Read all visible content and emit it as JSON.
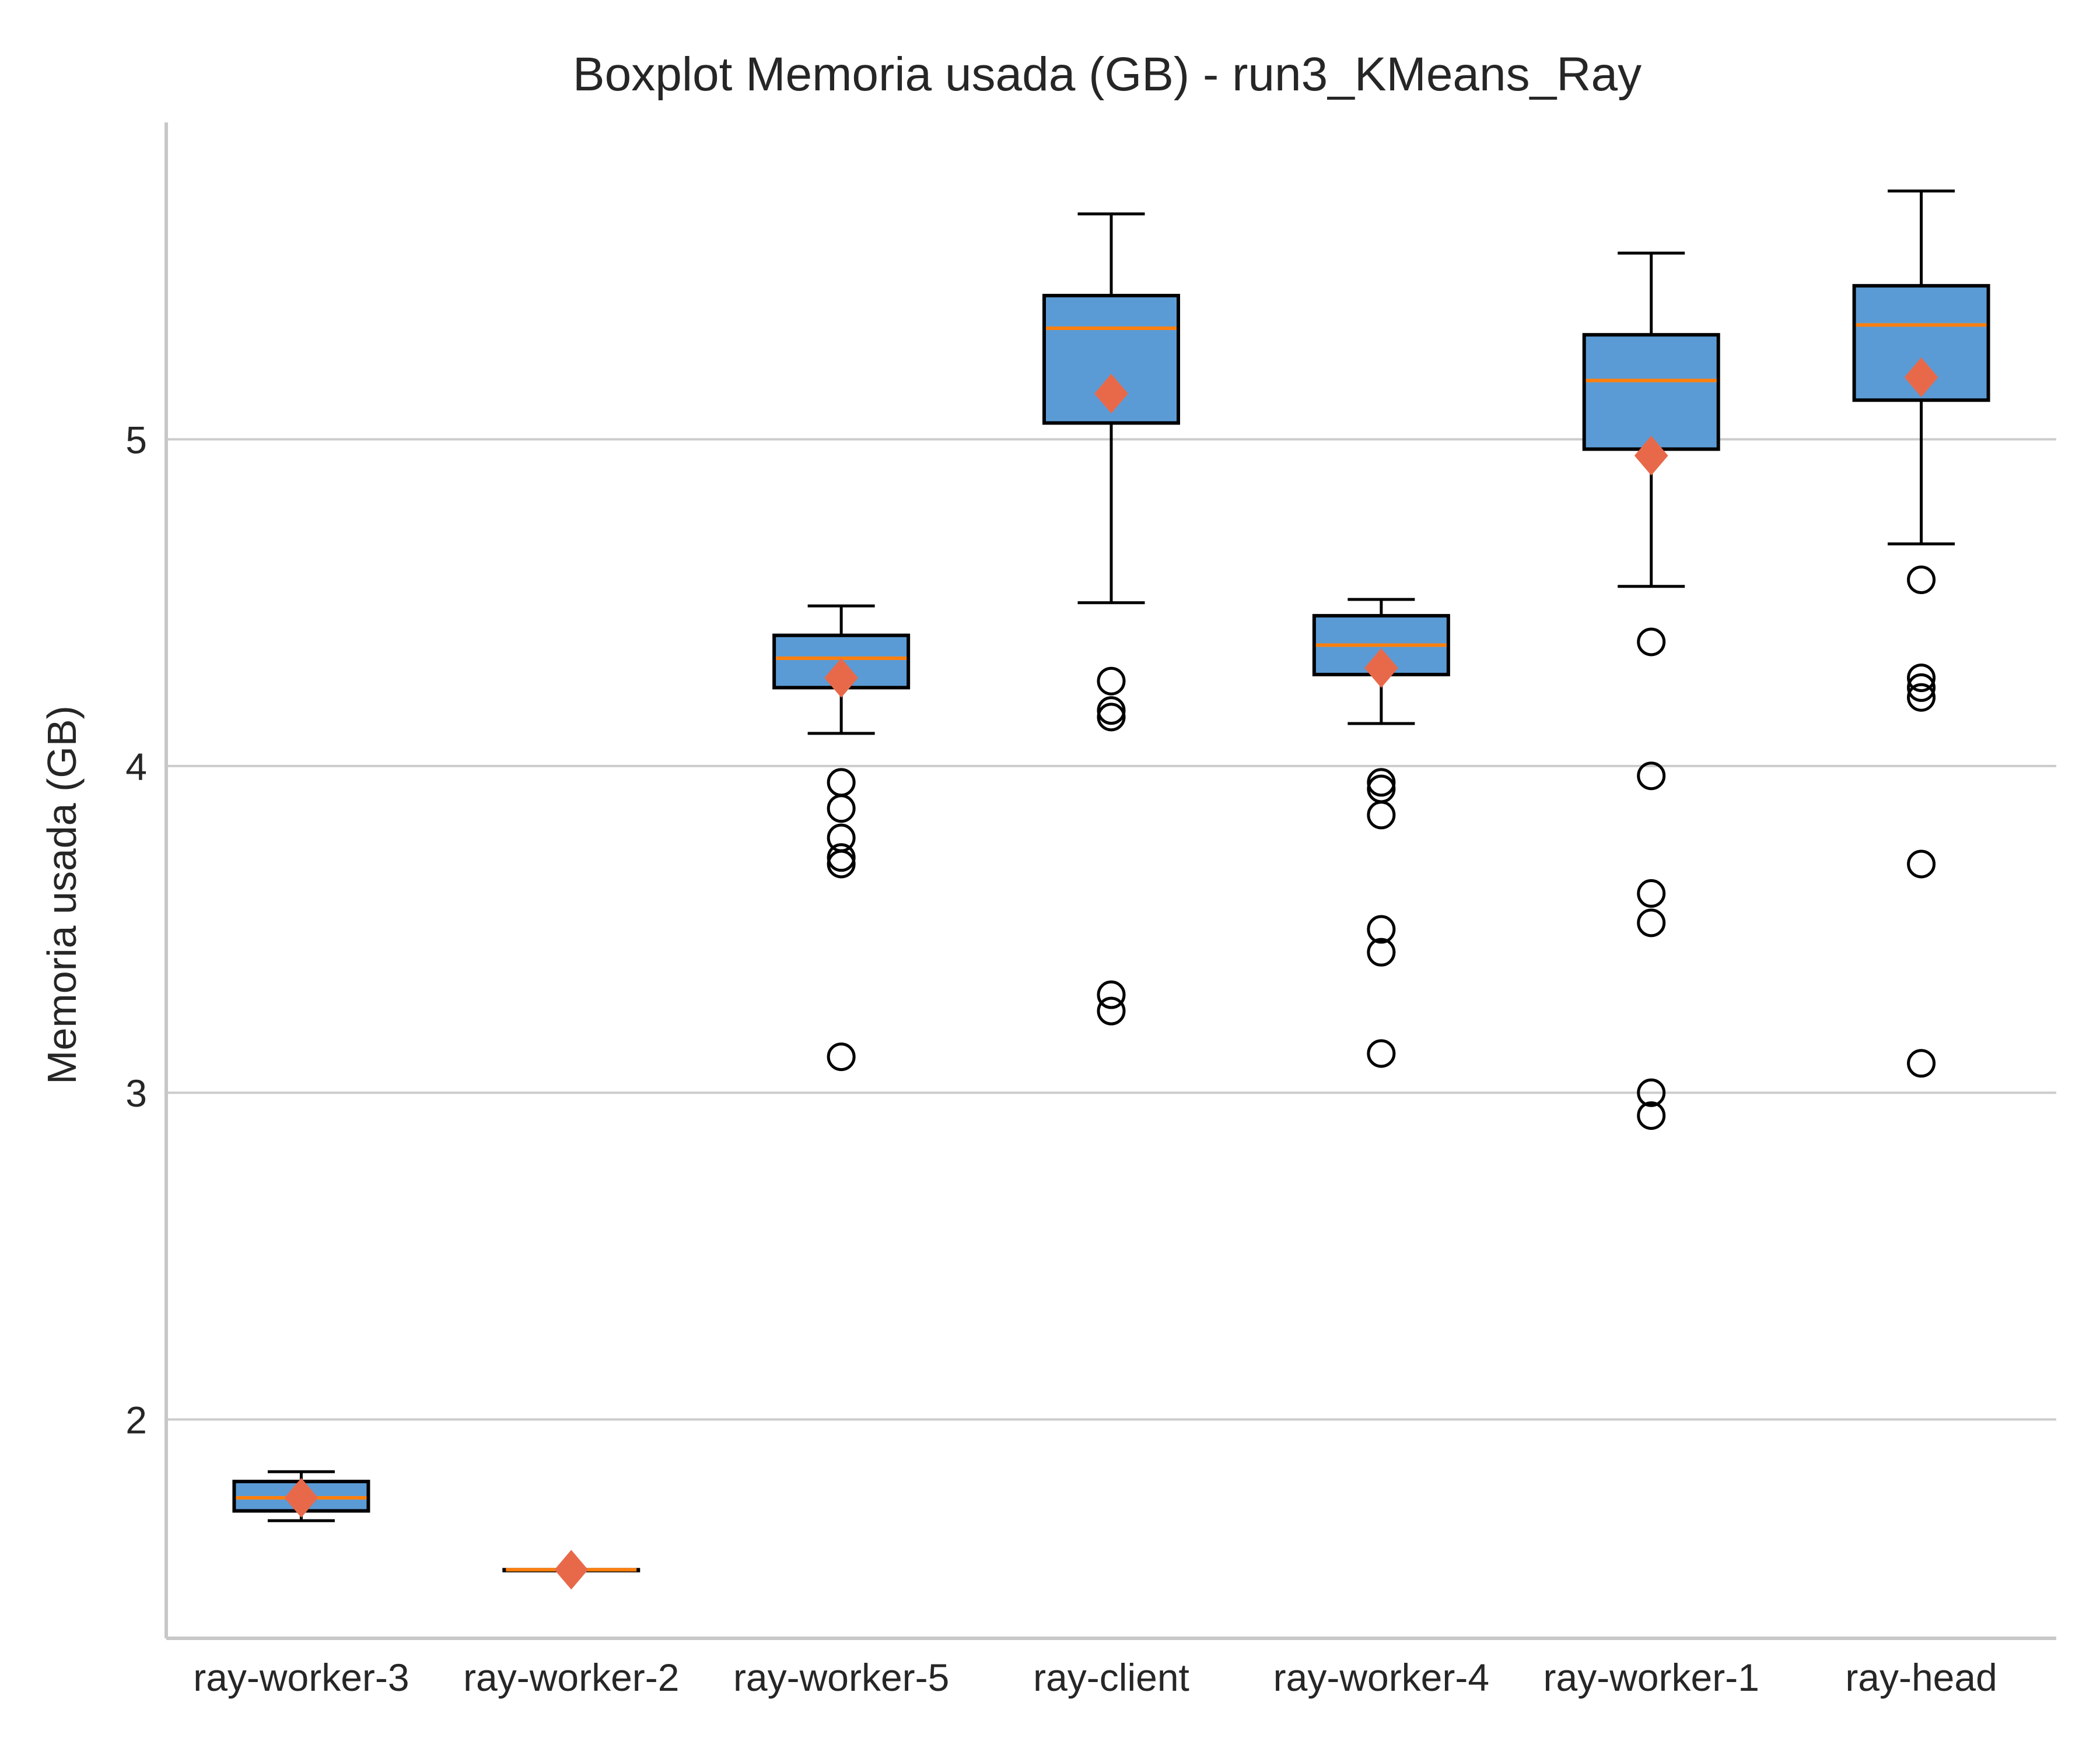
{
  "chart_data": {
    "type": "boxplot",
    "title": "Boxplot Memoria usada (GB) - run3_KMeans_Ray",
    "xlabel": "",
    "ylabel": "Memoria usada (GB)",
    "ylim": [
      1.33,
      5.97
    ],
    "yticks": [
      2,
      3,
      4,
      5
    ],
    "grid": "horizontal",
    "colors": {
      "box_fill": "#5b9bd5",
      "box_edge": "#000000",
      "median": "#ff7f0e",
      "mean_marker": "#e8694a",
      "grid": "#cccccc",
      "axis": "#c8c8c8"
    },
    "categories": [
      "ray-worker-3",
      "ray-worker-2",
      "ray-worker-5",
      "ray-client",
      "ray-worker-4",
      "ray-worker-1",
      "ray-head"
    ],
    "boxes": [
      {
        "label": "ray-worker-3",
        "whisker_low": 1.69,
        "q1": 1.72,
        "median": 1.76,
        "q3": 1.81,
        "whisker_high": 1.84,
        "mean": 1.76,
        "outliers": []
      },
      {
        "label": "ray-worker-2",
        "whisker_low": 1.54,
        "q1": 1.54,
        "median": 1.54,
        "q3": 1.54,
        "whisker_high": 1.54,
        "mean": 1.54,
        "outliers": []
      },
      {
        "label": "ray-worker-5",
        "whisker_low": 4.1,
        "q1": 4.24,
        "median": 4.33,
        "q3": 4.4,
        "whisker_high": 4.49,
        "mean": 4.27,
        "outliers": [
          3.95,
          3.87,
          3.78,
          3.72,
          3.7,
          3.11
        ]
      },
      {
        "label": "ray-client",
        "whisker_low": 4.5,
        "q1": 5.05,
        "median": 5.34,
        "q3": 5.44,
        "whisker_high": 5.69,
        "mean": 5.14,
        "outliers": [
          4.26,
          4.17,
          4.15,
          3.3,
          3.25
        ]
      },
      {
        "label": "ray-worker-4",
        "whisker_low": 4.13,
        "q1": 4.28,
        "median": 4.37,
        "q3": 4.46,
        "whisker_high": 4.51,
        "mean": 4.3,
        "outliers": [
          3.95,
          3.93,
          3.85,
          3.5,
          3.43,
          3.12
        ]
      },
      {
        "label": "ray-worker-1",
        "whisker_low": 4.55,
        "q1": 4.97,
        "median": 5.18,
        "q3": 5.32,
        "whisker_high": 5.57,
        "mean": 4.95,
        "outliers": [
          4.38,
          3.97,
          3.61,
          3.52,
          3.0,
          2.93
        ]
      },
      {
        "label": "ray-head",
        "whisker_low": 4.68,
        "q1": 5.12,
        "median": 5.35,
        "q3": 5.47,
        "whisker_high": 5.76,
        "mean": 5.19,
        "outliers": [
          4.57,
          4.27,
          4.24,
          4.21,
          3.7,
          3.09
        ]
      }
    ]
  }
}
